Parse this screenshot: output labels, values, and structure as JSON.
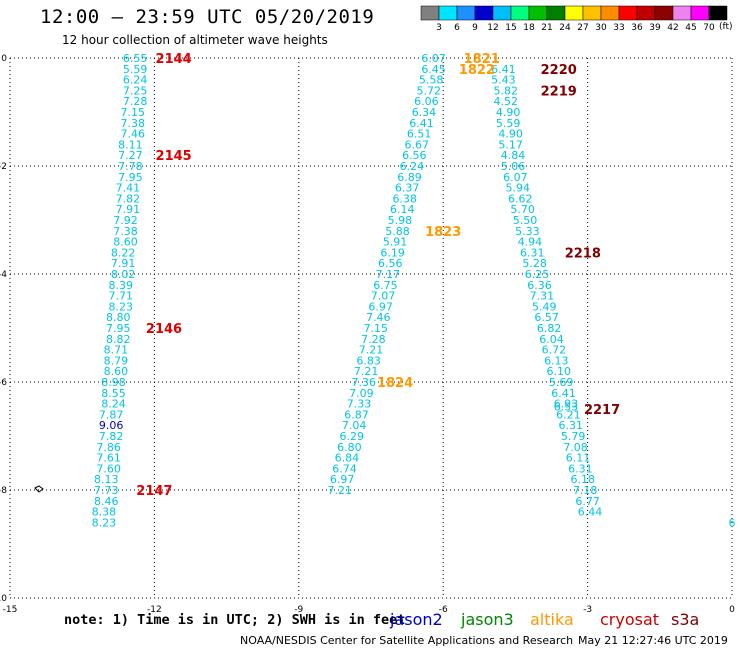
{
  "title": "12:00 – 23:59 UTC 05/20/2019",
  "subtitle": "12 hour collection of altimeter wave heights",
  "note": "note: 1) Time is in UTC; 2) SWH is in feet",
  "credit": "NOAA/NESDIS Center for Satellite Applications and Research",
  "timestamp": "May 21 12:27:46 UTC 2019",
  "colorbar": {
    "unit": "(ft)",
    "labels": [
      "3",
      "6",
      "9",
      "12",
      "15",
      "18",
      "21",
      "24",
      "27",
      "30",
      "33",
      "36",
      "39",
      "42",
      "45",
      "70"
    ],
    "colors": [
      "#808080",
      "#00e5ff",
      "#1e90ff",
      "#0000cd",
      "#00bfff",
      "#00ff7f",
      "#00c000",
      "#008000",
      "#ffff00",
      "#ffc000",
      "#ff8c00",
      "#ff0000",
      "#c00000",
      "#8b0000",
      "#ee82ee",
      "#ff00ff",
      "#000000"
    ]
  },
  "legend": [
    {
      "name": "jason2",
      "color": "#0000cc"
    },
    {
      "name": "jason3",
      "color": "#008800"
    },
    {
      "name": "altika",
      "color": "#ff9900"
    },
    {
      "name": "cryosat",
      "color": "#cc0000"
    },
    {
      "name": "s3a",
      "color": "#800000"
    }
  ],
  "chart_data": {
    "type": "scatter",
    "xlim": [
      -15,
      0
    ],
    "ylim": [
      -10,
      0
    ],
    "xticks": [
      "-15",
      "-12",
      "-9",
      "-6",
      "-3",
      "0"
    ],
    "yticks": [
      "0",
      "-2",
      "-4",
      "-6",
      "-8",
      "-10"
    ],
    "grid": true,
    "track_cryosat": {
      "color": "#00c5e5",
      "points": [
        {
          "x": -12.4,
          "y": 0.0,
          "v": "6.55"
        },
        {
          "x": -12.4,
          "y": -0.2,
          "v": "5.59"
        },
        {
          "x": -12.4,
          "y": -0.4,
          "v": "6.24"
        },
        {
          "x": -12.4,
          "y": -0.6,
          "v": "7.25"
        },
        {
          "x": -12.4,
          "y": -0.8,
          "v": "7.28"
        },
        {
          "x": -12.45,
          "y": -1.0,
          "v": "7.15"
        },
        {
          "x": -12.45,
          "y": -1.2,
          "v": "7.38"
        },
        {
          "x": -12.45,
          "y": -1.4,
          "v": "7.46"
        },
        {
          "x": -12.5,
          "y": -1.6,
          "v": "8.11"
        },
        {
          "x": -12.5,
          "y": -1.8,
          "v": "7.27"
        },
        {
          "x": -12.5,
          "y": -2.0,
          "v": "7.78"
        },
        {
          "x": -12.5,
          "y": -2.2,
          "v": "7.95"
        },
        {
          "x": -12.55,
          "y": -2.4,
          "v": "7.41"
        },
        {
          "x": -12.55,
          "y": -2.6,
          "v": "7.82"
        },
        {
          "x": -12.55,
          "y": -2.8,
          "v": "7.91"
        },
        {
          "x": -12.6,
          "y": -3.0,
          "v": "7.92"
        },
        {
          "x": -12.6,
          "y": -3.2,
          "v": "7.38"
        },
        {
          "x": -12.6,
          "y": -3.4,
          "v": "8.60"
        },
        {
          "x": -12.65,
          "y": -3.6,
          "v": "8.22"
        },
        {
          "x": -12.65,
          "y": -3.8,
          "v": "7.91"
        },
        {
          "x": -12.65,
          "y": -4.0,
          "v": "8.02"
        },
        {
          "x": -12.7,
          "y": -4.2,
          "v": "8.39"
        },
        {
          "x": -12.7,
          "y": -4.4,
          "v": "7.71"
        },
        {
          "x": -12.7,
          "y": -4.6,
          "v": "8.23"
        },
        {
          "x": -12.75,
          "y": -4.8,
          "v": "8.80"
        },
        {
          "x": -12.75,
          "y": -5.0,
          "v": "7.95"
        },
        {
          "x": -12.75,
          "y": -5.2,
          "v": "8.82"
        },
        {
          "x": -12.8,
          "y": -5.4,
          "v": "8.71"
        },
        {
          "x": -12.8,
          "y": -5.6,
          "v": "8.79"
        },
        {
          "x": -12.8,
          "y": -5.8,
          "v": "8.60"
        },
        {
          "x": -12.85,
          "y": -6.0,
          "v": "8.98"
        },
        {
          "x": -12.85,
          "y": -6.2,
          "v": "8.55"
        },
        {
          "x": -12.85,
          "y": -6.4,
          "v": "8.24"
        },
        {
          "x": -12.9,
          "y": -6.6,
          "v": "7.87"
        },
        {
          "x": -12.9,
          "y": -6.8,
          "v": "9.06",
          "color": "#0000cd"
        },
        {
          "x": -12.9,
          "y": -7.0,
          "v": "7.82"
        },
        {
          "x": -12.95,
          "y": -7.2,
          "v": "7.86"
        },
        {
          "x": -12.95,
          "y": -7.4,
          "v": "7.61"
        },
        {
          "x": -12.95,
          "y": -7.6,
          "v": "7.60"
        },
        {
          "x": -13.0,
          "y": -7.8,
          "v": "8.13"
        },
        {
          "x": -13.0,
          "y": -8.0,
          "v": "7.73"
        },
        {
          "x": -13.0,
          "y": -8.2,
          "v": "8.46"
        },
        {
          "x": -13.05,
          "y": -8.4,
          "v": "8.38"
        },
        {
          "x": -13.05,
          "y": -8.6,
          "v": "8.23"
        }
      ]
    },
    "labels_cryosat": [
      {
        "x": -11.6,
        "y": 0.0,
        "t": "2144"
      },
      {
        "x": -11.6,
        "y": -1.8,
        "t": "2145"
      },
      {
        "x": -11.8,
        "y": -5.0,
        "t": "2146"
      },
      {
        "x": -12.0,
        "y": -8.0,
        "t": "2147"
      }
    ],
    "track_altika": {
      "color": "#00c5e5",
      "points": [
        {
          "x": -6.2,
          "y": 0.0,
          "v": "6.07"
        },
        {
          "x": -6.2,
          "y": -0.2,
          "v": "6.45"
        },
        {
          "x": -6.25,
          "y": -0.4,
          "v": "5.58"
        },
        {
          "x": -6.3,
          "y": -0.6,
          "v": "5.72"
        },
        {
          "x": -6.35,
          "y": -0.8,
          "v": "6.06"
        },
        {
          "x": -6.4,
          "y": -1.0,
          "v": "6.34"
        },
        {
          "x": -6.45,
          "y": -1.2,
          "v": "6.41"
        },
        {
          "x": -6.5,
          "y": -1.4,
          "v": "6.51"
        },
        {
          "x": -6.55,
          "y": -1.6,
          "v": "6.67"
        },
        {
          "x": -6.6,
          "y": -1.8,
          "v": "6.56"
        },
        {
          "x": -6.65,
          "y": -2.0,
          "v": "6.24"
        },
        {
          "x": -6.7,
          "y": -2.2,
          "v": "6.89"
        },
        {
          "x": -6.75,
          "y": -2.4,
          "v": "6.37"
        },
        {
          "x": -6.8,
          "y": -2.6,
          "v": "6.38"
        },
        {
          "x": -6.85,
          "y": -2.8,
          "v": "6.14"
        },
        {
          "x": -6.9,
          "y": -3.0,
          "v": "5.98"
        },
        {
          "x": -6.95,
          "y": -3.2,
          "v": "5.88"
        },
        {
          "x": -7.0,
          "y": -3.4,
          "v": "5.91"
        },
        {
          "x": -7.05,
          "y": -3.6,
          "v": "6.19"
        },
        {
          "x": -7.1,
          "y": -3.8,
          "v": "6.56"
        },
        {
          "x": -7.15,
          "y": -4.0,
          "v": "7.17"
        },
        {
          "x": -7.2,
          "y": -4.2,
          "v": "6.75"
        },
        {
          "x": -7.25,
          "y": -4.4,
          "v": "7.07"
        },
        {
          "x": -7.3,
          "y": -4.6,
          "v": "6.97"
        },
        {
          "x": -7.35,
          "y": -4.8,
          "v": "7.46"
        },
        {
          "x": -7.4,
          "y": -5.0,
          "v": "7.15"
        },
        {
          "x": -7.45,
          "y": -5.2,
          "v": "7.28"
        },
        {
          "x": -7.5,
          "y": -5.4,
          "v": "7.21"
        },
        {
          "x": -7.55,
          "y": -5.6,
          "v": "6.83"
        },
        {
          "x": -7.6,
          "y": -5.8,
          "v": "7.21"
        },
        {
          "x": -7.65,
          "y": -6.0,
          "v": "7.36"
        },
        {
          "x": -7.7,
          "y": -6.2,
          "v": "7.09"
        },
        {
          "x": -7.75,
          "y": -6.4,
          "v": "7.33"
        },
        {
          "x": -7.8,
          "y": -6.6,
          "v": "6.87"
        },
        {
          "x": -7.85,
          "y": -6.8,
          "v": "7.04"
        },
        {
          "x": -7.9,
          "y": -7.0,
          "v": "6.29"
        },
        {
          "x": -7.95,
          "y": -7.2,
          "v": "6.80"
        },
        {
          "x": -8.0,
          "y": -7.4,
          "v": "6.84"
        },
        {
          "x": -8.05,
          "y": -7.6,
          "v": "6.74"
        },
        {
          "x": -8.1,
          "y": -7.8,
          "v": "6.97"
        },
        {
          "x": -8.15,
          "y": -8.0,
          "v": "7.21"
        }
      ]
    },
    "labels_altika": [
      {
        "x": -5.2,
        "y": 0.0,
        "t": "1821"
      },
      {
        "x": -5.3,
        "y": -0.2,
        "t": "1822"
      },
      {
        "x": -6.0,
        "y": -3.2,
        "t": "1823"
      },
      {
        "x": -7.0,
        "y": -6.0,
        "t": "1824"
      }
    ],
    "track_s3a": {
      "color": "#00c5e5",
      "points": [
        {
          "x": -4.75,
          "y": -0.2,
          "v": "6.41"
        },
        {
          "x": -4.75,
          "y": -0.4,
          "v": "5.43"
        },
        {
          "x": -4.7,
          "y": -0.6,
          "v": "5.82"
        },
        {
          "x": -4.7,
          "y": -0.8,
          "v": "4.52"
        },
        {
          "x": -4.65,
          "y": -1.0,
          "v": "4.90"
        },
        {
          "x": -4.65,
          "y": -1.2,
          "v": "5.59"
        },
        {
          "x": -4.6,
          "y": -1.4,
          "v": "4.90"
        },
        {
          "x": -4.6,
          "y": -1.6,
          "v": "5.17"
        },
        {
          "x": -4.55,
          "y": -1.8,
          "v": "4.84"
        },
        {
          "x": -4.55,
          "y": -2.0,
          "v": "5.06"
        },
        {
          "x": -4.5,
          "y": -2.2,
          "v": "6.07"
        },
        {
          "x": -4.45,
          "y": -2.4,
          "v": "5.94"
        },
        {
          "x": -4.4,
          "y": -2.6,
          "v": "6.62"
        },
        {
          "x": -4.35,
          "y": -2.8,
          "v": "5.70"
        },
        {
          "x": -4.3,
          "y": -3.0,
          "v": "5.50"
        },
        {
          "x": -4.25,
          "y": -3.2,
          "v": "5.33"
        },
        {
          "x": -4.2,
          "y": -3.4,
          "v": "4.94"
        },
        {
          "x": -4.15,
          "y": -3.6,
          "v": "6.31"
        },
        {
          "x": -4.1,
          "y": -3.8,
          "v": "5.28"
        },
        {
          "x": -4.05,
          "y": -4.0,
          "v": "6.25"
        },
        {
          "x": -4.0,
          "y": -4.2,
          "v": "6.36"
        },
        {
          "x": -3.95,
          "y": -4.4,
          "v": "7.31"
        },
        {
          "x": -3.9,
          "y": -4.6,
          "v": "5.49"
        },
        {
          "x": -3.85,
          "y": -4.8,
          "v": "6.57"
        },
        {
          "x": -3.8,
          "y": -5.0,
          "v": "6.82"
        },
        {
          "x": -3.75,
          "y": -5.2,
          "v": "6.04"
        },
        {
          "x": -3.7,
          "y": -5.4,
          "v": "6.72"
        },
        {
          "x": -3.65,
          "y": -5.6,
          "v": "6.13"
        },
        {
          "x": -3.6,
          "y": -5.8,
          "v": "6.10"
        },
        {
          "x": -3.55,
          "y": -6.0,
          "v": "5.69"
        },
        {
          "x": -3.5,
          "y": -6.2,
          "v": "6.41"
        },
        {
          "x": -3.45,
          "y": -6.4,
          "v": "6.93"
        },
        {
          "x": -3.45,
          "y": -6.45,
          "v": "6.53"
        },
        {
          "x": -3.4,
          "y": -6.6,
          "v": "6.21"
        },
        {
          "x": -3.35,
          "y": -6.8,
          "v": "6.31"
        },
        {
          "x": -3.3,
          "y": -7.0,
          "v": "5.79"
        },
        {
          "x": -3.25,
          "y": -7.2,
          "v": "7.08"
        },
        {
          "x": -3.2,
          "y": -7.4,
          "v": "6.11"
        },
        {
          "x": -3.15,
          "y": -7.6,
          "v": "6.31"
        },
        {
          "x": -3.1,
          "y": -7.8,
          "v": "6.18"
        },
        {
          "x": -3.05,
          "y": -8.0,
          "v": "7.18"
        },
        {
          "x": -3.0,
          "y": -8.2,
          "v": "6.77"
        },
        {
          "x": -2.95,
          "y": -8.4,
          "v": "6.44"
        },
        {
          "x": 0.0,
          "y": -8.6,
          "v": "6"
        }
      ]
    },
    "labels_s3a": [
      {
        "x": -3.6,
        "y": -0.2,
        "t": "2220"
      },
      {
        "x": -3.6,
        "y": -0.6,
        "t": "2219"
      },
      {
        "x": -3.1,
        "y": -3.6,
        "t": "2218"
      },
      {
        "x": -2.7,
        "y": -6.5,
        "t": "2217"
      }
    ]
  }
}
